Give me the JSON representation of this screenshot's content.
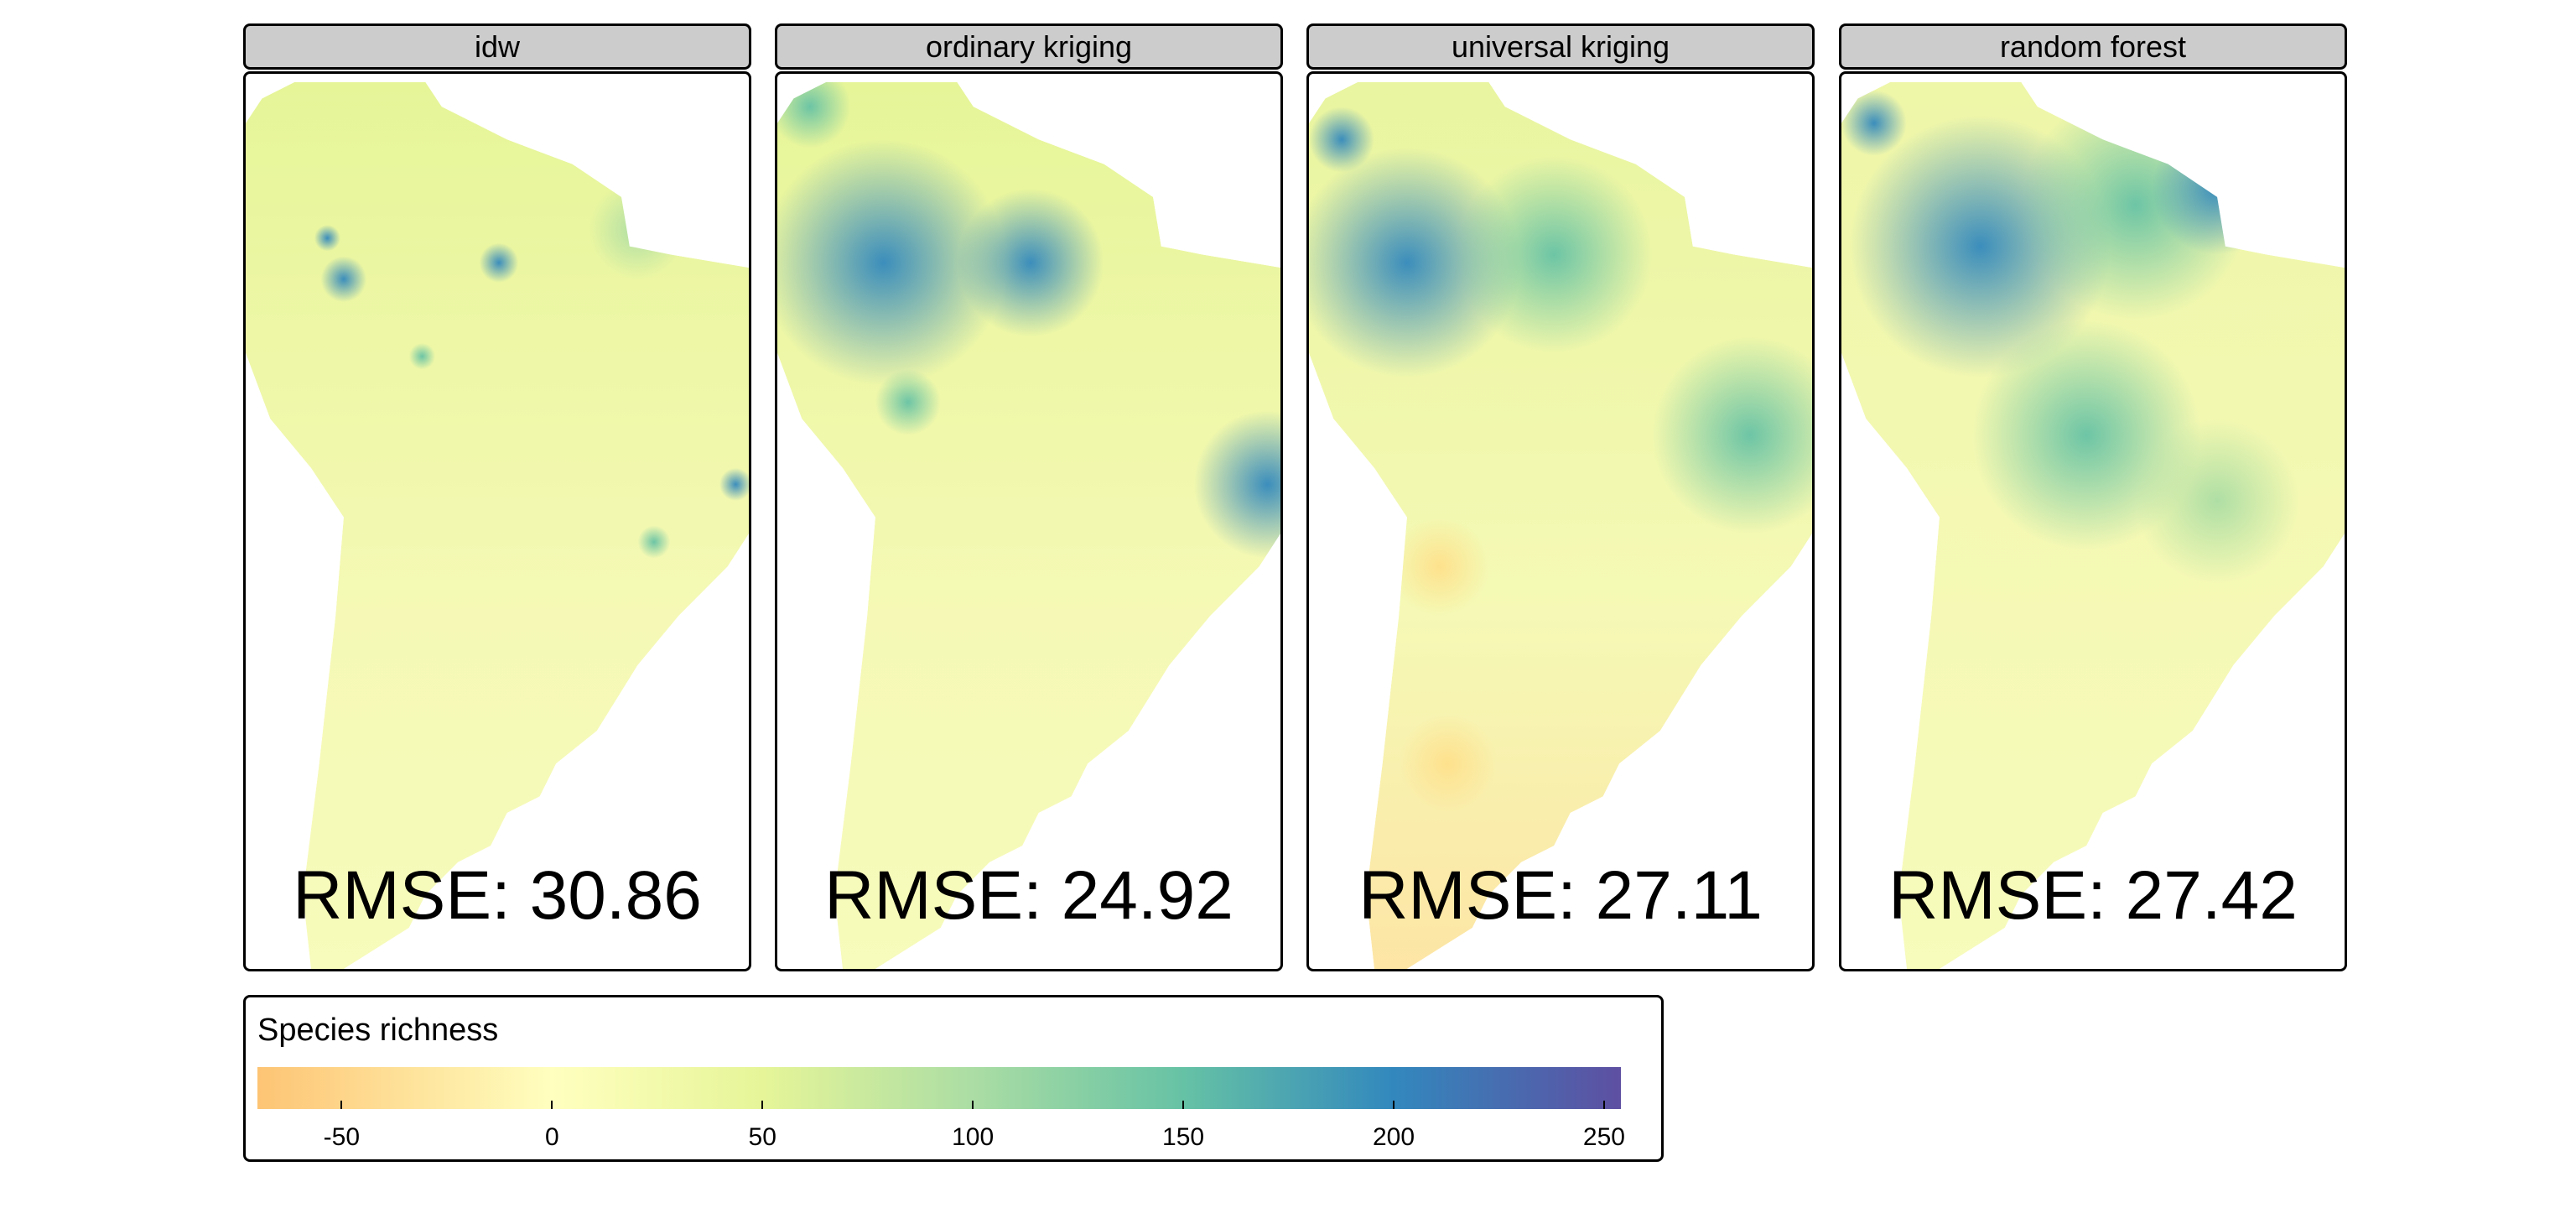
{
  "chart_data": {
    "type": "heatmap",
    "title": "",
    "panels": [
      {
        "name": "idw",
        "rmse_label": "RMSE: 30.86",
        "rmse": 30.86
      },
      {
        "name": "ordinary kriging",
        "rmse_label": "RMSE: 24.92",
        "rmse": 24.92
      },
      {
        "name": "universal kriging",
        "rmse_label": "RMSE: 27.11",
        "rmse": 27.11
      },
      {
        "name": "random forest",
        "rmse_label": "RMSE: 27.42",
        "rmse": 27.42
      }
    ],
    "legend": {
      "title": "Species richness",
      "range": [
        -70,
        254
      ],
      "ticks": [
        -50,
        0,
        50,
        100,
        150,
        200,
        250
      ],
      "tick_labels": [
        "-50",
        "0",
        "50",
        "100",
        "150",
        "200",
        "250"
      ],
      "placement": "bottom-left",
      "palette": [
        {
          "value": -70,
          "color": "#fdc474"
        },
        {
          "value": 0,
          "color": "#ffffbf"
        },
        {
          "value": 50,
          "color": "#e6f598"
        },
        {
          "value": 100,
          "color": "#abdda4"
        },
        {
          "value": 150,
          "color": "#66c2a5"
        },
        {
          "value": 200,
          "color": "#3288bd"
        },
        {
          "value": 254,
          "color": "#5e4fa2"
        }
      ]
    }
  }
}
